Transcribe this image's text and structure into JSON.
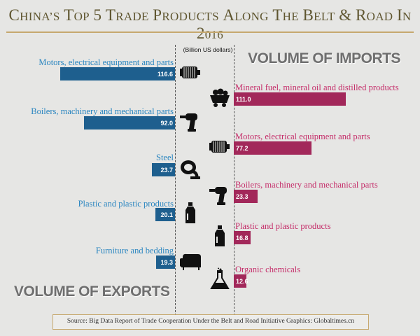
{
  "chart_data": {
    "type": "bar",
    "title": "China’s top 5 trade products along the Belt & Road in 2016",
    "unit": "(Billion US dollars)",
    "series": [
      {
        "name": "VOLUME OF EXPORTS",
        "categories": [
          "Motors, electrical equipment and parts",
          "Boilers, machinery and mechanical parts",
          "Steel",
          "Plastic and plastic products",
          "Furniture and bedding"
        ],
        "values": [
          116.6,
          92.0,
          23.7,
          20.1,
          19.3
        ],
        "value_labels": [
          "116.6",
          "92.0",
          "23.7",
          "20.1",
          "19.3"
        ],
        "icons": [
          "motor-icon",
          "drill-icon",
          "steel-ladle-icon",
          "plastic-bottle-icon",
          "sofa-icon"
        ]
      },
      {
        "name": "VOLUME OF IMPORTS",
        "categories": [
          "Mineral fuel, mineral oil and distilled products",
          "Motors, electrical equipment and parts",
          "Boilers, machinery and mechanical parts",
          "Plastic and plastic products",
          "Organic chemicals"
        ],
        "values": [
          111.0,
          77.2,
          23.3,
          16.8,
          12.6
        ],
        "value_labels": [
          "111.0",
          "77.2",
          "23.3",
          "16.8",
          "12.6"
        ],
        "icons": [
          "mine-cart-icon",
          "motor-icon",
          "drill-icon",
          "plastic-bottle-icon",
          "flask-icon"
        ]
      }
    ],
    "legend_position": "top-right and bottom-left",
    "colors": {
      "exports": "#1e5f8e",
      "imports": "#a2285a",
      "export_label": "#2b86c0",
      "import_label": "#c52e6a"
    }
  },
  "footer": {
    "text": "Source: Big Data Report of Trade Cooperation Under the Belt and Road Initiative  Graphics: Globaltimes.cn"
  }
}
